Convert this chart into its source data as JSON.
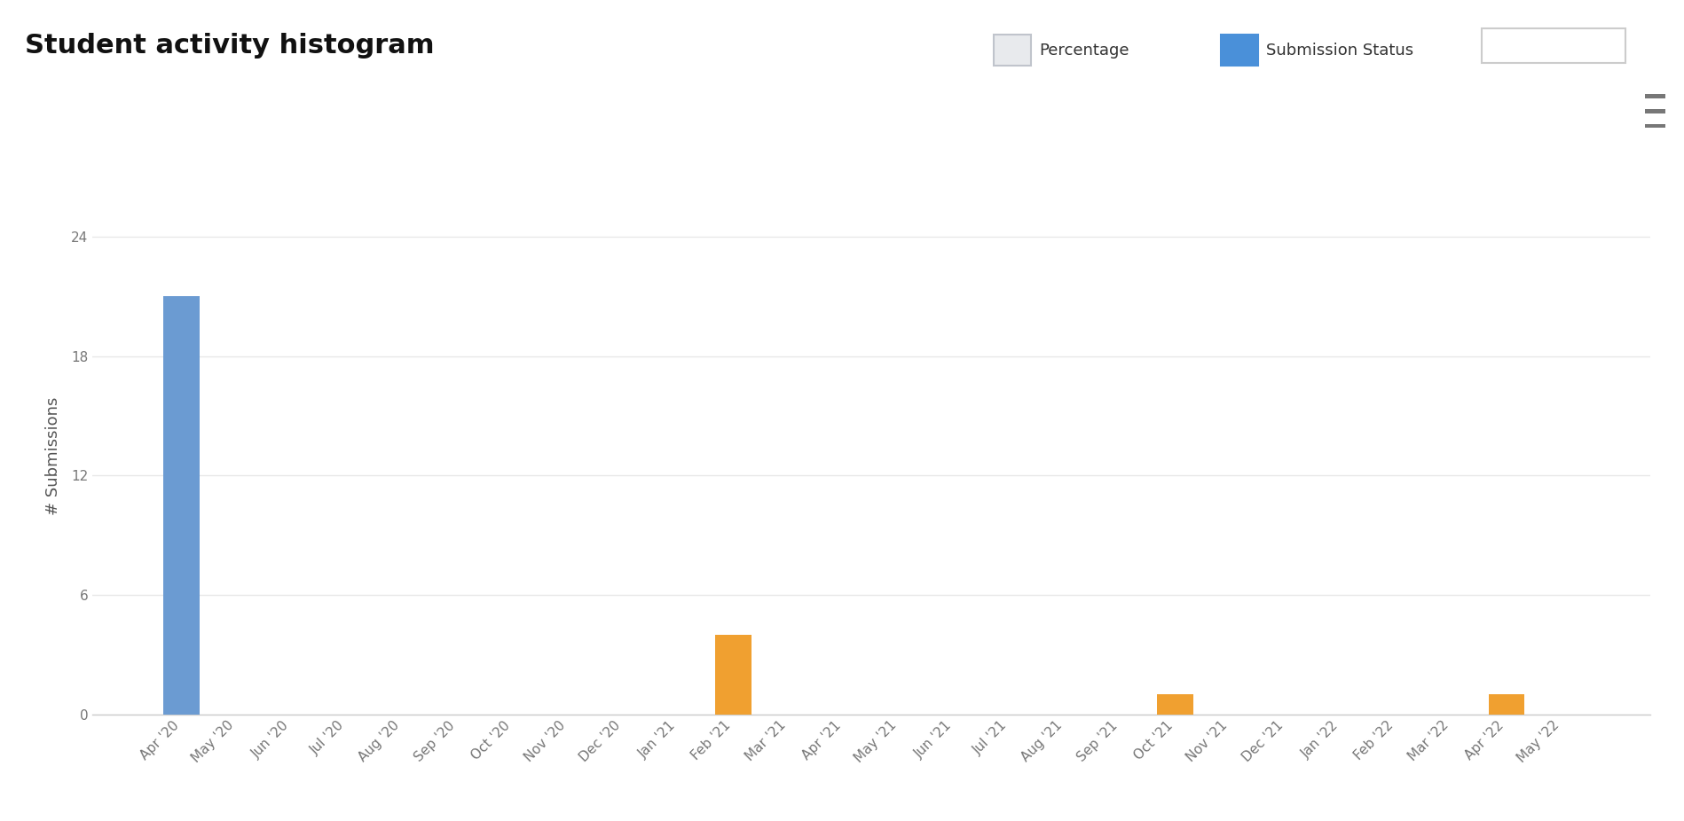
{
  "title": "Student activity histogram",
  "ylabel": "# Submissions",
  "background_color": "#ffffff",
  "grid_color": "#e8e8e8",
  "yticks": [
    0,
    6,
    12,
    18,
    24
  ],
  "ylim": [
    0,
    26
  ],
  "categories": [
    "Apr '20",
    "May '20",
    "Jun '20",
    "Jul '20",
    "Aug '20",
    "Sep '20",
    "Oct '20",
    "Nov '20",
    "Dec '20",
    "Jan '21",
    "Feb '21",
    "Mar '21",
    "Apr '21",
    "May '21",
    "Jun '21",
    "Jul '21",
    "Aug '21",
    "Sep '21",
    "Oct '21",
    "Nov '21",
    "Dec '21",
    "Jan '22",
    "Feb '22",
    "Mar '22",
    "Apr '22",
    "May '22"
  ],
  "on_time_values": [
    21,
    0,
    0,
    0,
    0,
    0,
    0,
    0,
    0,
    0,
    0,
    0,
    0,
    0,
    0,
    0,
    0,
    0,
    0,
    0,
    0,
    0,
    0,
    0,
    0,
    0
  ],
  "late_values": [
    0,
    0,
    0,
    0,
    0,
    0,
    0,
    0,
    0,
    0,
    4,
    0,
    0,
    0,
    0,
    0,
    0,
    0,
    1,
    0,
    0,
    0,
    0,
    0,
    1,
    0
  ],
  "on_time_color": "#6b9bd2",
  "late_color": "#f0a030",
  "bar_width": 0.65,
  "title_fontsize": 22,
  "axis_label_fontsize": 13,
  "tick_fontsize": 11,
  "legend_fontsize": 13,
  "header_elements": {
    "percentage_label": "Percentage",
    "submission_label": "Submission Status",
    "checkbox_unchecked_color": "#d0d5dd",
    "checkbox_checked_color": "#4a90d9",
    "button_border_color": "#cccccc"
  }
}
